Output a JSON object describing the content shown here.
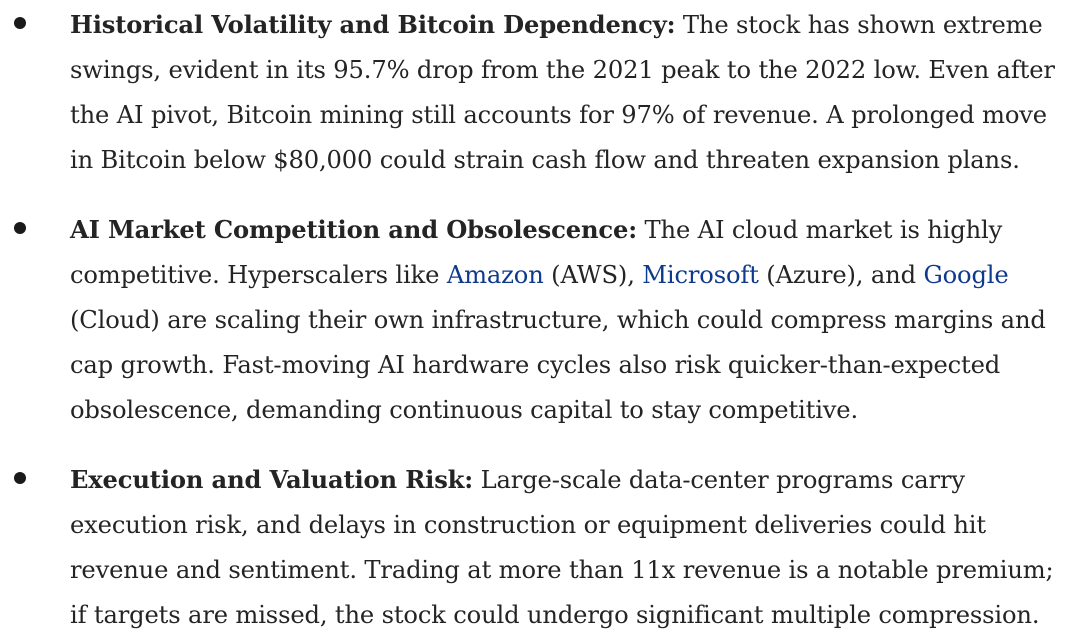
{
  "risks": [
    {
      "heading": "Historical Volatility and Bitcoin Dependency:",
      "body": " The stock has shown extreme swings, evident in its 95.7% drop from the 2021 peak to the 2022 low. Even after the AI pivot, Bitcoin mining still accounts for 97% of revenue. A prolonged move in Bitcoin below $80,000 could strain cash flow and threaten expansion plans."
    },
    {
      "heading": "AI Market Competition and Obsolescence:",
      "body_start": " The AI cloud market is highly competitive. Hyperscalers like ",
      "links": [
        "Amazon",
        "Microsoft",
        "Google"
      ],
      "after_link_1": " (AWS), ",
      "after_link_2": " (Azure), and ",
      "body_end": " (Cloud) are scaling their own infrastructure, which could compress margins and cap growth. Fast-moving AI hardware cycles also risk quicker-than-expected obsolescence, demanding continuous capital to stay competitive."
    },
    {
      "heading": "Execution and Valuation Risk:",
      "body": " Large-scale data-center programs carry execution risk, and delays in construction or equipment deliveries could hit revenue and sentiment. Trading at more than 11x revenue is a notable premium; if targets are missed, the stock could undergo significant multiple compression."
    }
  ],
  "colors": {
    "text": "#242424",
    "link": "#0d3a8c",
    "bullet": "#1a1a1a"
  }
}
